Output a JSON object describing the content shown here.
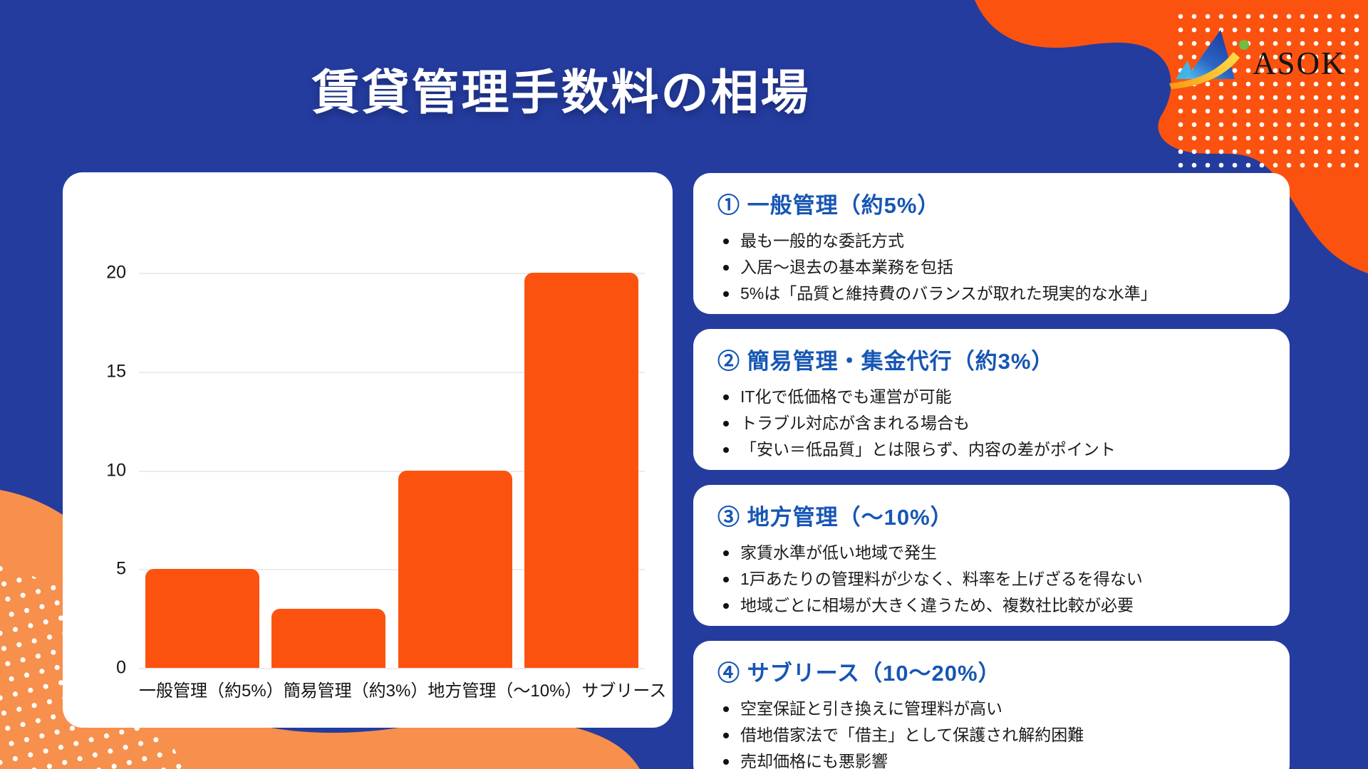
{
  "page": {
    "title": "賃貸管理手数料の相場"
  },
  "logo": {
    "brand": "ASOK"
  },
  "colors": {
    "background": "#243C9E",
    "accent_orange": "#FB530F",
    "soft_orange": "#F78F4D",
    "heading_blue": "#1656B4",
    "title_text": "#FFFFFF"
  },
  "chart_data": {
    "type": "bar",
    "title": "",
    "categories": [
      "一般管理（約5%）",
      "簡易管理（約3%）",
      "地方管理（〜10%）",
      "サブリース"
    ],
    "values": [
      5,
      3,
      10,
      20
    ],
    "xlabel": "",
    "ylabel": "",
    "ylim": [
      0,
      20
    ],
    "yticks": [
      0,
      5,
      10,
      15,
      20
    ],
    "grid": true,
    "legend": "none",
    "bar_color": "#FB530F"
  },
  "cards": [
    {
      "heading": "① 一般管理（約5%）",
      "bullets": [
        "最も一般的な委託方式",
        "入居〜退去の基本業務を包括",
        "5%は「品質と維持費のバランスが取れた現実的な水準」"
      ]
    },
    {
      "heading": "② 簡易管理・集金代行（約3%）",
      "bullets": [
        "IT化で低価格でも運営が可能",
        "トラブル対応が含まれる場合も",
        "「安い＝低品質」とは限らず、内容の差がポイント"
      ]
    },
    {
      "heading": "③ 地方管理（〜10%）",
      "bullets": [
        "家賃水準が低い地域で発生",
        "1戸あたりの管理料が少なく、料率を上げざるを得ない",
        "地域ごとに相場が大きく違うため、複数社比較が必要"
      ]
    },
    {
      "heading": "④ サブリース（10〜20%）",
      "bullets": [
        "空室保証と引き換えに管理料が高い",
        "借地借家法で「借主」として保護され解約困難",
        "売却価格にも悪影響"
      ]
    }
  ]
}
